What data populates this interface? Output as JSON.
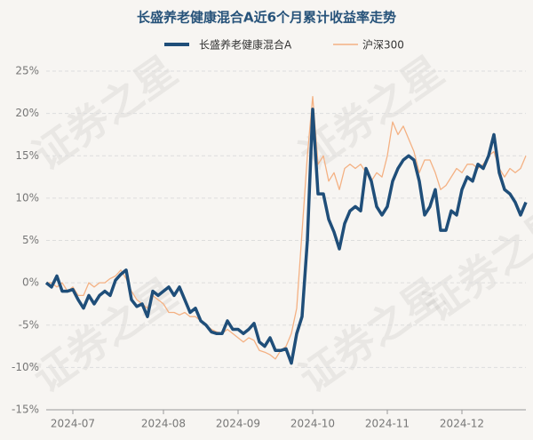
{
  "chart_data": {
    "type": "line",
    "title": "长盛养老健康混合A近6个月累计收益率走势",
    "watermark": "证券之星",
    "categories": [
      null,
      null,
      null,
      null,
      null,
      "2024-07",
      null,
      null,
      null,
      null,
      null,
      null,
      null,
      null,
      null,
      null,
      null,
      null,
      null,
      null,
      null,
      null,
      "2024-08",
      null,
      null,
      null,
      null,
      null,
      null,
      null,
      null,
      null,
      null,
      null,
      null,
      null,
      "2024-09",
      null,
      null,
      null,
      null,
      null,
      null,
      null,
      null,
      null,
      null,
      null,
      null,
      null,
      "2024-10",
      null,
      null,
      null,
      null,
      null,
      null,
      null,
      null,
      null,
      null,
      null,
      null,
      null,
      "2024-11",
      null,
      null,
      null,
      null,
      null,
      null,
      null,
      null,
      null,
      null,
      null,
      null,
      null,
      "2024-12",
      null,
      null,
      null,
      null,
      null,
      null,
      null,
      null,
      null,
      null,
      null,
      null
    ],
    "series": [
      {
        "name": "长盛养老健康混合A",
        "color": "#1f4e79",
        "values": [
          0,
          -0.5,
          0.8,
          -1,
          -1,
          -0.8,
          -2,
          -3,
          -1.5,
          -2.5,
          -1.5,
          -1,
          -1.5,
          0.3,
          1,
          1.5,
          -2,
          -2.8,
          -2.5,
          -4,
          -1,
          -1.5,
          -1,
          -0.5,
          -1.5,
          -0.5,
          -2,
          -3.5,
          -3,
          -4.5,
          -5,
          -5.8,
          -6,
          -6,
          -4.5,
          -5.5,
          -5.5,
          -6,
          -5.5,
          -4.8,
          -7,
          -7.5,
          -6.5,
          -8,
          -8,
          -7.8,
          -9.5,
          -6,
          -4,
          5,
          20.5,
          10.5,
          10.5,
          7.5,
          6,
          4,
          7,
          8.5,
          9,
          8.5,
          13.5,
          12,
          9,
          8,
          9,
          12,
          13.5,
          14.5,
          15,
          14.5,
          12,
          8,
          9,
          11,
          6.2,
          6.2,
          8.5,
          8,
          11,
          12.5,
          12,
          14,
          13.5,
          15,
          17.5,
          13,
          11,
          10.5,
          9.5,
          8,
          9.5
        ]
      },
      {
        "name": "沪深300",
        "color": "#f4b183",
        "values": [
          0,
          0,
          -0.5,
          0,
          -1,
          -0.5,
          -1.5,
          -1.5,
          0,
          -0.5,
          0,
          0,
          0.5,
          0.8,
          1.5,
          0.5,
          -1,
          -2,
          -2.5,
          -3,
          -1.5,
          -2,
          -2.5,
          -3.5,
          -3.5,
          -3.8,
          -3.5,
          -4,
          -4,
          -4.5,
          -5,
          -5.5,
          -5.8,
          -6,
          -5.5,
          -6,
          -6.5,
          -7,
          -6.5,
          -6.8,
          -8,
          -8.2,
          -8.5,
          -9,
          -8,
          -7.5,
          -6,
          -3,
          6,
          15,
          22,
          14,
          15,
          12,
          13,
          11,
          13.5,
          14,
          13.5,
          14,
          13,
          12,
          13,
          12.5,
          15,
          19,
          17.5,
          18.5,
          17,
          15.5,
          13,
          14.5,
          14.5,
          13,
          11,
          11.5,
          12.5,
          13.5,
          13,
          14,
          14,
          13.5,
          14,
          15,
          15.5,
          13.5,
          12.5,
          13.5,
          13,
          13.5,
          15
        ]
      }
    ],
    "ylim": [
      -15,
      25
    ],
    "yticks": [
      {
        "value": -15,
        "label": "-15%"
      },
      {
        "value": -10,
        "label": "-10%"
      },
      {
        "value": -5,
        "label": "-5%"
      },
      {
        "value": 0,
        "label": "0%"
      },
      {
        "value": 5,
        "label": "5%"
      },
      {
        "value": 10,
        "label": "10%"
      },
      {
        "value": 15,
        "label": "15%"
      },
      {
        "value": 20,
        "label": "20%"
      },
      {
        "value": 25,
        "label": "25%"
      }
    ],
    "grid": true
  }
}
